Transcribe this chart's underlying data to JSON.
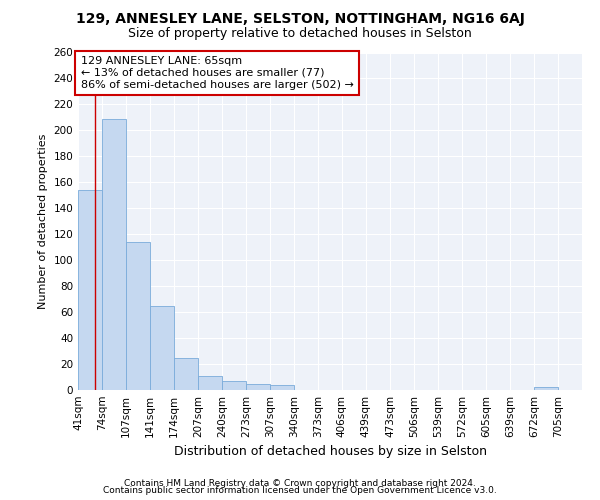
{
  "title": "129, ANNESLEY LANE, SELSTON, NOTTINGHAM, NG16 6AJ",
  "subtitle": "Size of property relative to detached houses in Selston",
  "xlabel": "Distribution of detached houses by size in Selston",
  "ylabel": "Number of detached properties",
  "footnote1": "Contains HM Land Registry data © Crown copyright and database right 2024.",
  "footnote2": "Contains public sector information licensed under the Open Government Licence v3.0.",
  "annotation_line1": "129 ANNESLEY LANE: 65sqm",
  "annotation_line2": "← 13% of detached houses are smaller (77)",
  "annotation_line3": "86% of semi-detached houses are larger (502) →",
  "bar_color": "#c5d8f0",
  "bar_edge_color": "#7aabda",
  "redline_color": "#cc0000",
  "redline_x": 65,
  "categories": [
    "41sqm",
    "74sqm",
    "107sqm",
    "141sqm",
    "174sqm",
    "207sqm",
    "240sqm",
    "273sqm",
    "307sqm",
    "340sqm",
    "373sqm",
    "406sqm",
    "439sqm",
    "473sqm",
    "506sqm",
    "539sqm",
    "572sqm",
    "605sqm",
    "639sqm",
    "672sqm",
    "705sqm"
  ],
  "bin_edges": [
    41,
    74,
    107,
    141,
    174,
    207,
    240,
    273,
    307,
    340,
    373,
    406,
    439,
    473,
    506,
    539,
    572,
    605,
    639,
    672,
    705,
    738
  ],
  "values": [
    154,
    209,
    114,
    65,
    25,
    11,
    7,
    5,
    4,
    0,
    0,
    0,
    0,
    0,
    0,
    0,
    0,
    0,
    0,
    2,
    0
  ],
  "ylim": [
    0,
    260
  ],
  "yticks": [
    0,
    20,
    40,
    60,
    80,
    100,
    120,
    140,
    160,
    180,
    200,
    220,
    240,
    260
  ],
  "background_color": "#eef2f9",
  "grid_color": "#ffffff",
  "title_fontsize": 10,
  "subtitle_fontsize": 9,
  "xlabel_fontsize": 9,
  "ylabel_fontsize": 8,
  "tick_fontsize": 7.5,
  "annotation_fontsize": 8,
  "footnote_fontsize": 6.5
}
